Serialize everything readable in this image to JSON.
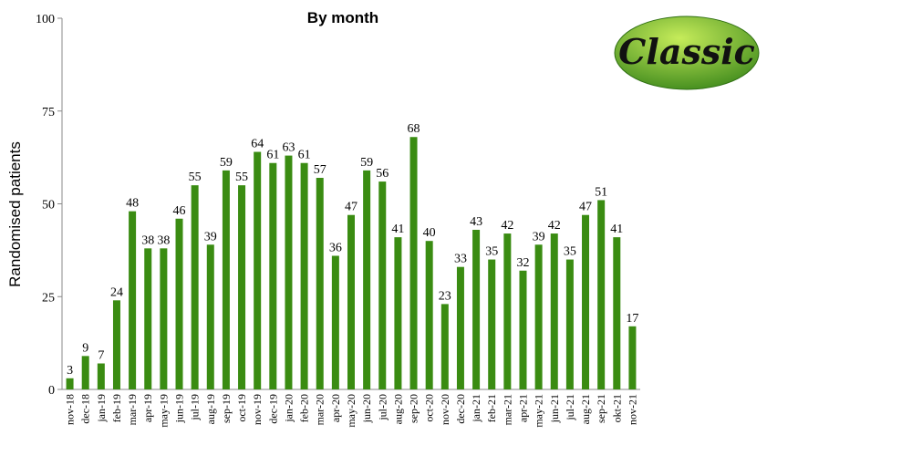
{
  "chart_data": {
    "type": "bar",
    "title": "By month",
    "ylabel": "Randomised patients",
    "xlabel": "",
    "ylim": [
      0,
      100
    ],
    "yticks": [
      0,
      25,
      50,
      75,
      100
    ],
    "grid": false,
    "bar_color": "#3a8c12",
    "show_data_labels": true,
    "categories": [
      "nov-18",
      "dec-18",
      "jan-19",
      "feb-19",
      "mar-19",
      "apr-19",
      "may-19",
      "jun-19",
      "jul-19",
      "aug-19",
      "sep-19",
      "oct-19",
      "nov-19",
      "dec-19",
      "jan-20",
      "feb-20",
      "mar-20",
      "apr-20",
      "may-20",
      "jun-20",
      "jul-20",
      "aug-20",
      "sep-20",
      "oct-20",
      "nov-20",
      "dec-20",
      "jan-21",
      "feb-21",
      "mar-21",
      "apr-21",
      "may-21",
      "jun-21",
      "jul-21",
      "aug-21",
      "sep-21",
      "okt-21",
      "nov-21"
    ],
    "values": [
      3,
      9,
      7,
      24,
      48,
      38,
      38,
      46,
      55,
      39,
      59,
      55,
      64,
      61,
      63,
      61,
      57,
      36,
      47,
      59,
      56,
      41,
      68,
      40,
      23,
      33,
      43,
      35,
      42,
      32,
      39,
      42,
      35,
      47,
      51,
      41,
      17
    ]
  },
  "logo": {
    "text": "Classic",
    "color_light": "#9ed23a",
    "color_dark": "#3f8a1c"
  }
}
